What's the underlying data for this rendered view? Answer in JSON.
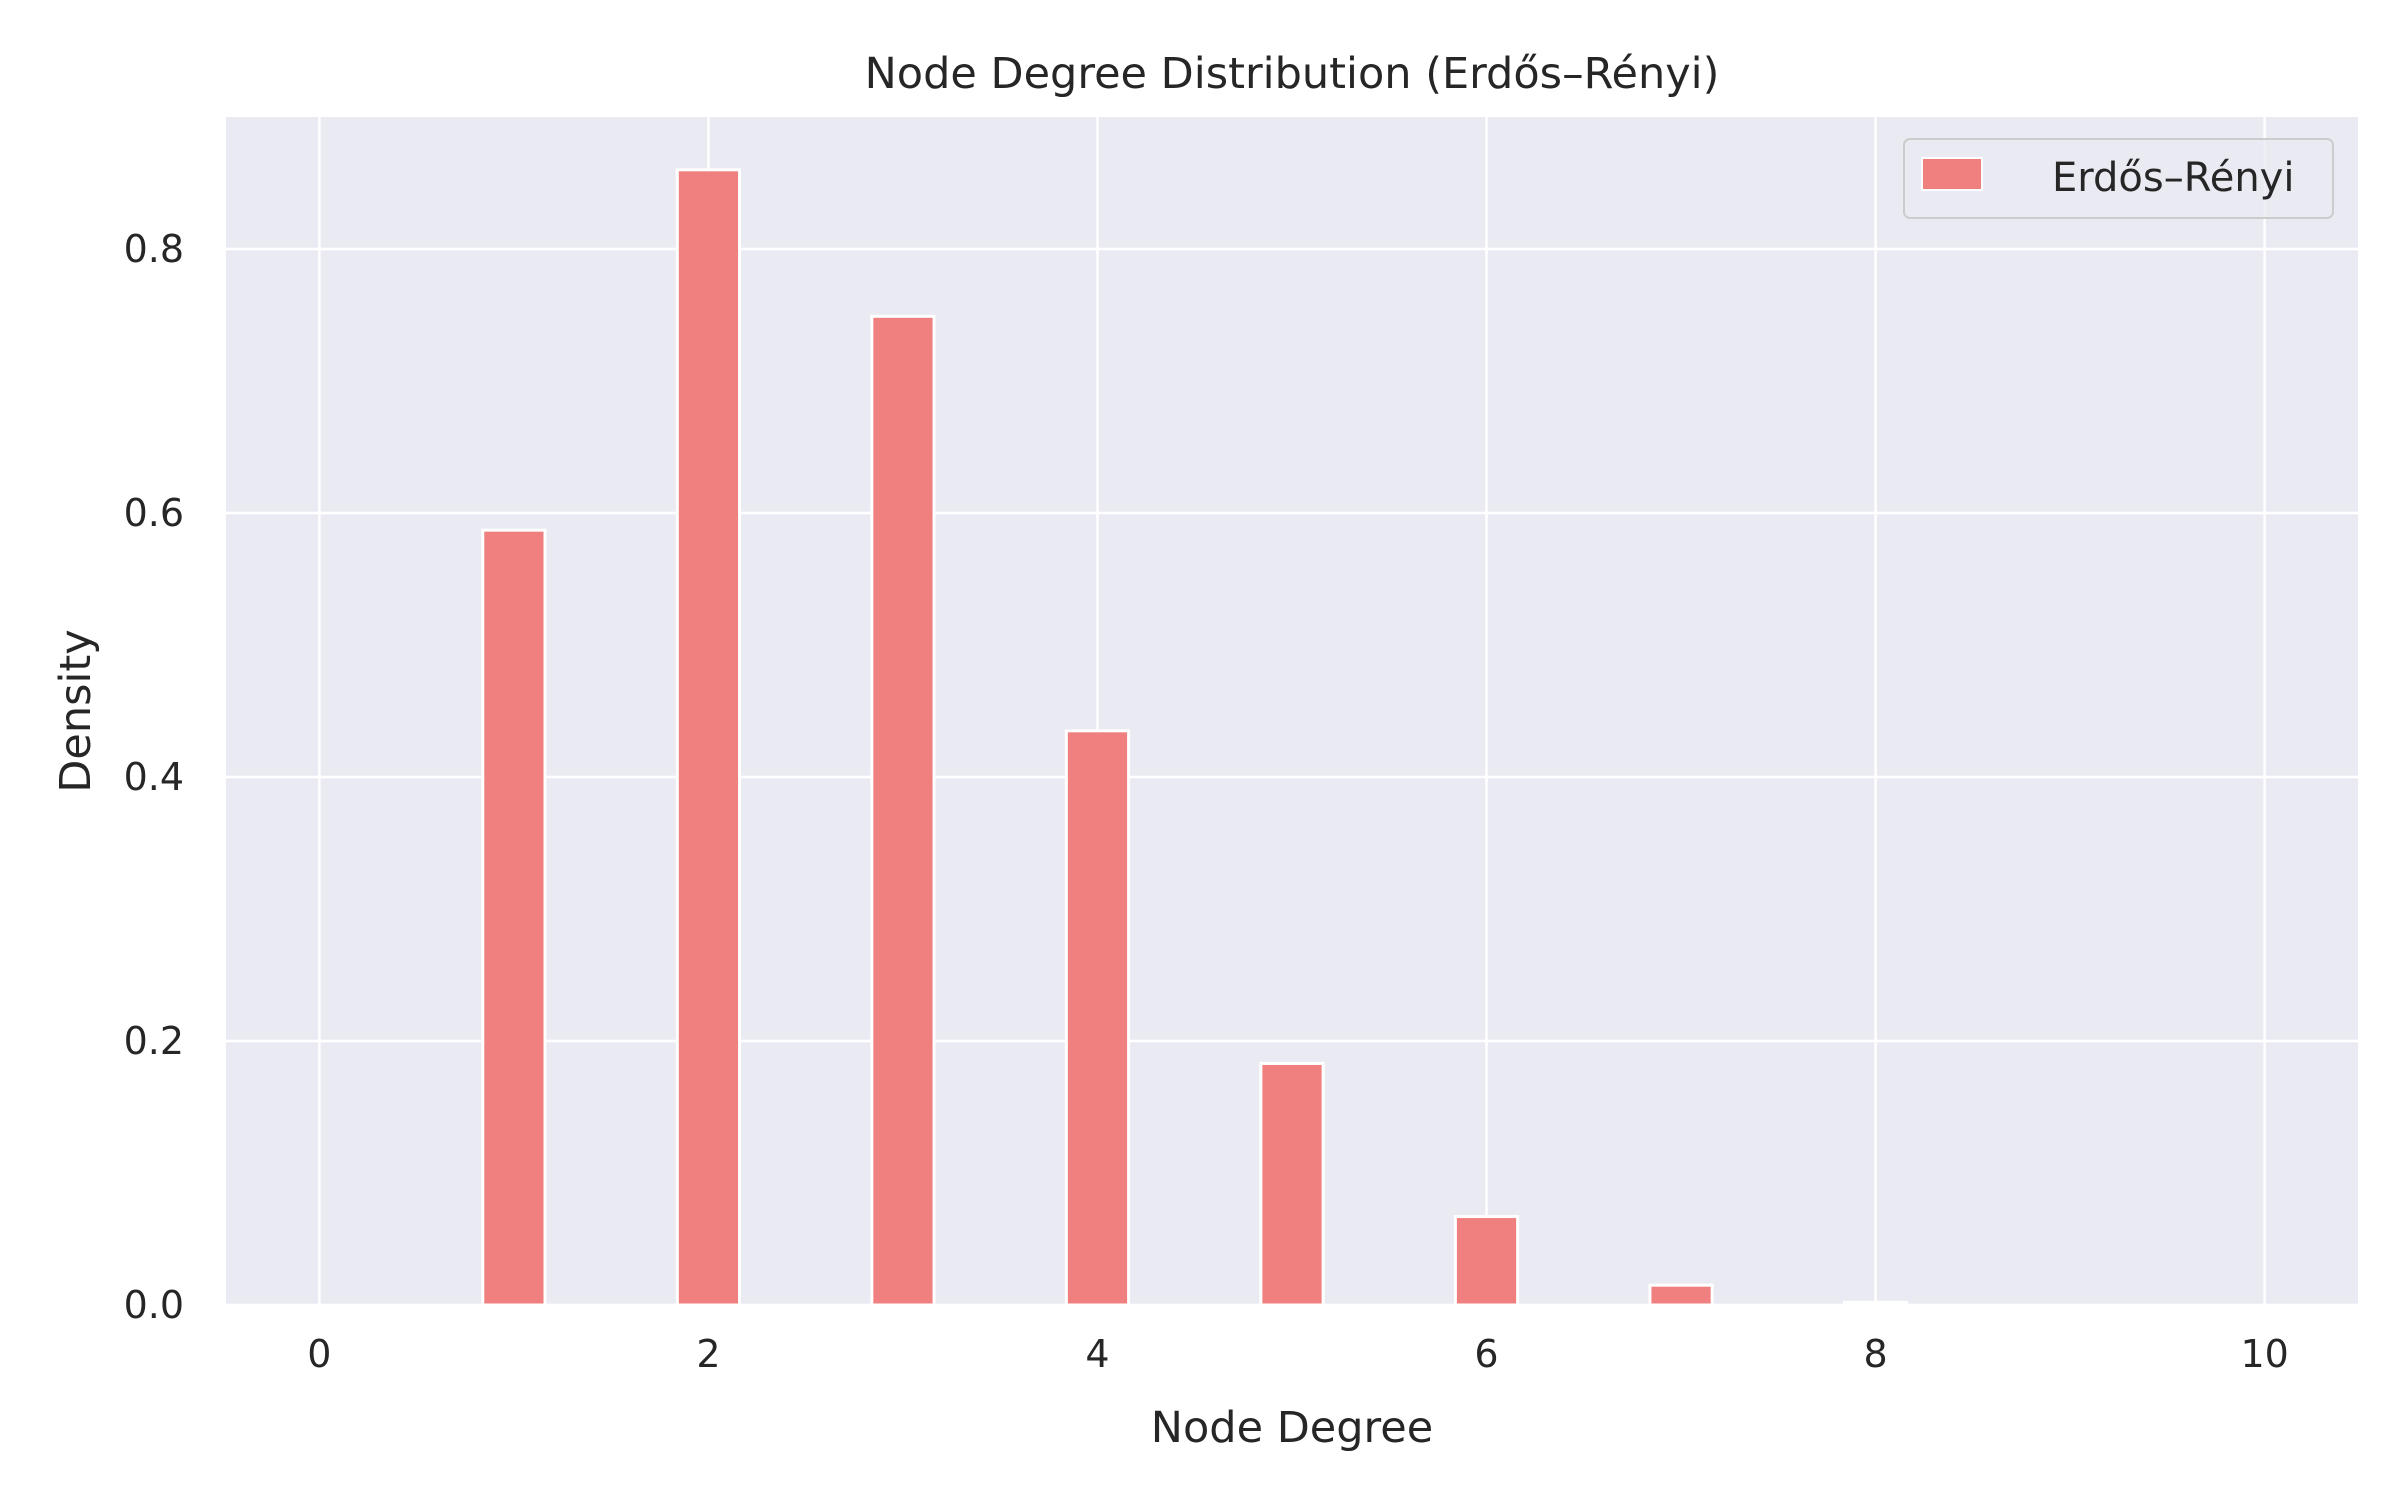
{
  "chart_data": {
    "type": "bar",
    "title": "Node Degree Distribution (Erdős–Rényi)",
    "xlabel": "Node Degree",
    "ylabel": "Density",
    "xlim": [
      -0.48,
      10.48
    ],
    "ylim": [
      0,
      0.9
    ],
    "x_ticks": [
      0,
      2,
      4,
      6,
      8,
      10
    ],
    "x_tick_labels": [
      "0",
      "2",
      "4",
      "6",
      "8",
      "10"
    ],
    "y_ticks": [
      0.0,
      0.2,
      0.4,
      0.6,
      0.8
    ],
    "y_tick_labels": [
      "0.0",
      "0.2",
      "0.4",
      "0.6",
      "0.8"
    ],
    "bar_width": 0.32,
    "grid": true,
    "legend_position": "top-right",
    "series": [
      {
        "name": "Erdős–Rényi",
        "color": "#f08080",
        "x": [
          1,
          2,
          3,
          4,
          5,
          6,
          7,
          8
        ],
        "values": [
          0.587,
          0.86,
          0.749,
          0.435,
          0.183,
          0.067,
          0.015,
          0.002
        ]
      }
    ],
    "colors": {
      "plot_background": "#eaeaf2",
      "grid": "#ffffff",
      "text": "#262626",
      "bar_edge": "#ffffff"
    }
  }
}
